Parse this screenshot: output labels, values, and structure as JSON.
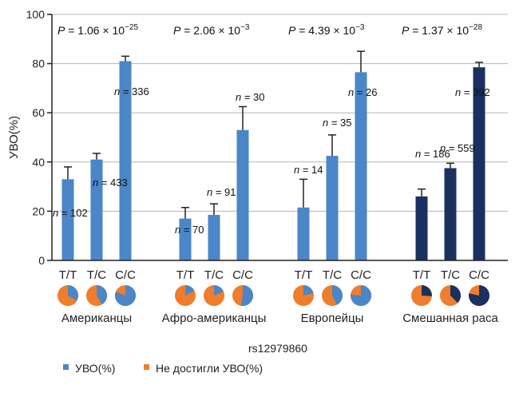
{
  "chart_data": {
    "type": "bar",
    "ylabel": "УВО(%)",
    "xlabel": "rs12979860",
    "ylim": [
      0,
      100
    ],
    "yticks": [
      0,
      20,
      40,
      60,
      80,
      100
    ],
    "grid": true,
    "legend": {
      "position": "bottom-left",
      "entries": [
        {
          "label": "УВО(%)",
          "color": "#4a86c8"
        },
        {
          "label": "Не достигли УВО(%)",
          "color": "#ef7d2c"
        }
      ]
    },
    "genotypes": [
      "T/T",
      "T/C",
      "C/C"
    ],
    "groups": [
      {
        "name": "Американцы",
        "p_text": "P = 1.06 × 10",
        "p_exp": "−25",
        "bar_color": "#4a86c8",
        "pie_color": "#4a86c8",
        "values": [
          33,
          41,
          81
        ],
        "errors": [
          5,
          2.5,
          2
        ],
        "n_labels": [
          "n = 102",
          "n = 433",
          "n = 336"
        ]
      },
      {
        "name": "Афро-американцы",
        "p_text": "P = 2.06 × 10",
        "p_exp": "−3",
        "bar_color": "#4a86c8",
        "pie_color": "#4a86c8",
        "values": [
          17,
          18.5,
          53
        ],
        "errors": [
          4.5,
          4.5,
          9.5
        ],
        "n_labels": [
          "n = 70",
          "n = 91",
          "n = 30"
        ]
      },
      {
        "name": "Европейцы",
        "p_text": "P = 4.39 × 10",
        "p_exp": "−3",
        "bar_color": "#4a86c8",
        "pie_color": "#4a86c8",
        "values": [
          21.5,
          42.5,
          76.5
        ],
        "errors": [
          11.5,
          8.5,
          8.5
        ],
        "n_labels": [
          "n = 14",
          "n = 35",
          "n = 26"
        ]
      },
      {
        "name": "Смешанная раса",
        "p_text": "P = 1.37 × 10",
        "p_exp": "−28",
        "bar_color": "#1a3160",
        "pie_color": "#1a3160",
        "values": [
          26,
          37.5,
          78.5
        ],
        "errors": [
          3,
          2,
          2
        ],
        "n_labels": [
          "n = 186",
          "n = 559",
          "n = 392"
        ]
      }
    ]
  }
}
